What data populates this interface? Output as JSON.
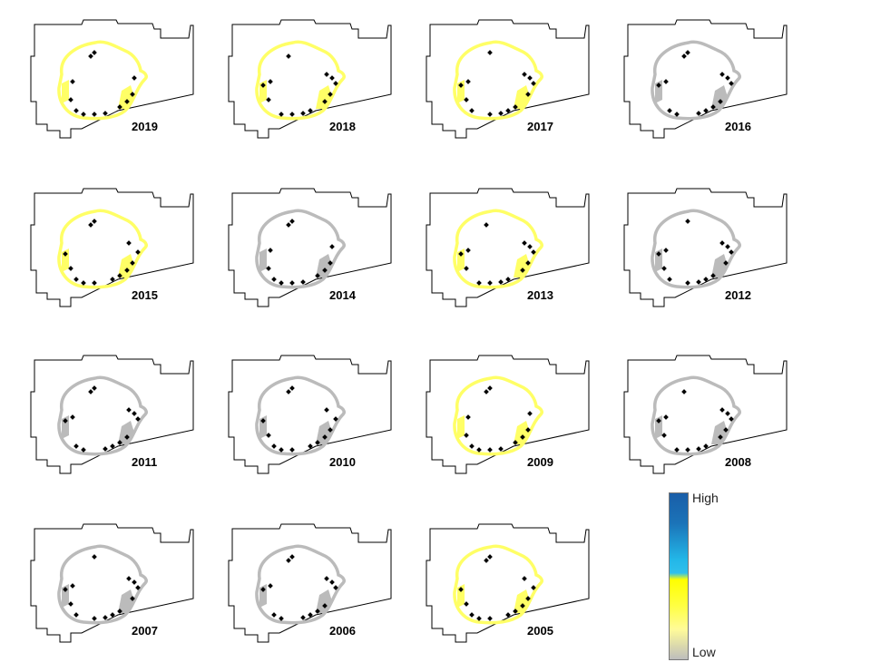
{
  "panels": [
    {
      "year": "2019",
      "ring": "yellow",
      "blobs": "yellow"
    },
    {
      "year": "2018",
      "ring": "yellow",
      "blobs": "yellow"
    },
    {
      "year": "2017",
      "ring": "yellow",
      "blobs": "yellow"
    },
    {
      "year": "2016",
      "ring": "gray",
      "blobs": "gray"
    },
    {
      "year": "2015",
      "ring": "yellow",
      "blobs": "yellow"
    },
    {
      "year": "2014",
      "ring": "gray",
      "blobs": "gray"
    },
    {
      "year": "2013",
      "ring": "yellow",
      "blobs": "yellow"
    },
    {
      "year": "2012",
      "ring": "gray",
      "blobs": "gray"
    },
    {
      "year": "2011",
      "ring": "gray",
      "blobs": "gray"
    },
    {
      "year": "2010",
      "ring": "gray",
      "blobs": "gray"
    },
    {
      "year": "2009",
      "ring": "yellow",
      "blobs": "yellow"
    },
    {
      "year": "2008",
      "ring": "gray",
      "blobs": "gray"
    },
    {
      "year": "2007",
      "ring": "gray",
      "blobs": "gray"
    },
    {
      "year": "2006",
      "ring": "gray",
      "blobs": "gray"
    },
    {
      "year": "2005",
      "ring": "yellow",
      "blobs": "yellow"
    }
  ],
  "legend": {
    "high_label": "High",
    "low_label": "Low"
  },
  "colors": {
    "yellow": "#ffff66",
    "gray": "#bbbbbb",
    "boundary": "#000000",
    "site": "#000000"
  }
}
